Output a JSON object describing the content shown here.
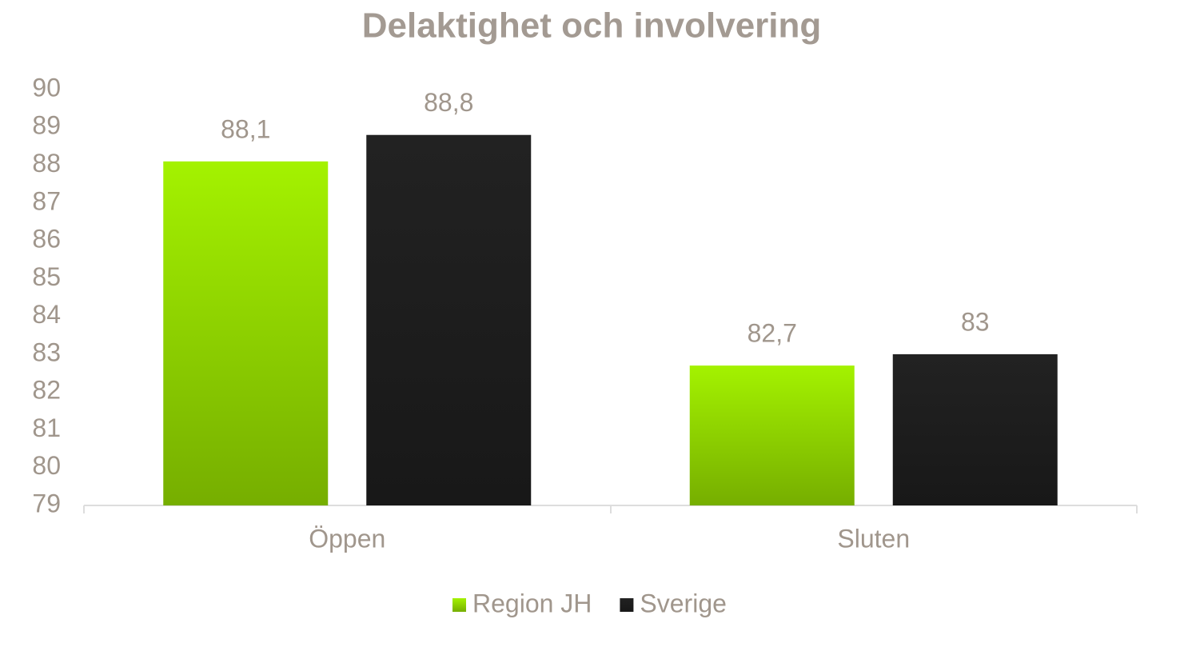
{
  "chart_data": {
    "type": "bar",
    "title": "Delaktighet och involvering",
    "categories": [
      "Öppen",
      "Sluten"
    ],
    "series": [
      {
        "name": "Region JH",
        "color": "#a4f200",
        "values": [
          88.1,
          82.7
        ],
        "value_labels": [
          "88,1",
          "82,7"
        ]
      },
      {
        "name": "Sverige",
        "color": "#222222",
        "values": [
          88.8,
          83
        ],
        "value_labels": [
          "88,8",
          "83"
        ]
      }
    ],
    "ylim": [
      79,
      90
    ],
    "yticks": [
      79,
      80,
      81,
      82,
      83,
      84,
      85,
      86,
      87,
      88,
      89,
      90
    ],
    "grid": false,
    "legend": "bottom"
  }
}
